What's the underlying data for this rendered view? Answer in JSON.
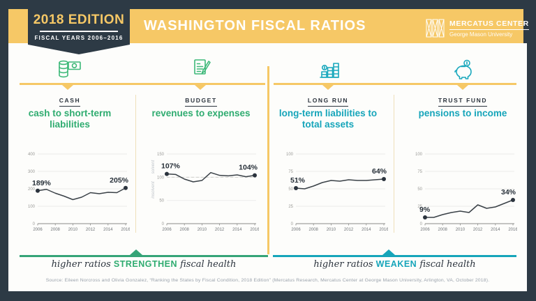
{
  "header": {
    "edition": "2018 EDITION",
    "fiscal_years": "FISCAL YEARS 2006–2016",
    "title": "WASHINGTON FISCAL RATIOS",
    "logo_name": "MERCATUS CENTER",
    "logo_subtitle": "George Mason University"
  },
  "colors": {
    "navy": "#2d3a45",
    "yellow": "#f6c866",
    "green": "#2fac70",
    "teal": "#16a5ba",
    "line": "#3a4147"
  },
  "panels": [
    {
      "category": "CASH",
      "title": "cash to short-term liabilities",
      "icon": "coins-and-bill-icon"
    },
    {
      "category": "BUDGET",
      "title": "revenues to expenses",
      "icon": "document-pencil-icon"
    },
    {
      "category": "LONG RUN",
      "title": "long-term liabilities to total assets",
      "icon": "coin-stacks-chart-icon"
    },
    {
      "category": "TRUST FUND",
      "title": "pensions to income",
      "icon": "piggy-bank-icon"
    }
  ],
  "chart_data": [
    {
      "type": "line",
      "panel": "CASH",
      "title": "cash to short-term liabilities",
      "x": [
        2006,
        2007,
        2008,
        2009,
        2010,
        2011,
        2012,
        2013,
        2014,
        2015,
        2016
      ],
      "values": [
        189,
        197,
        175,
        158,
        138,
        152,
        178,
        172,
        180,
        178,
        205
      ],
      "ylim": [
        0,
        400
      ],
      "yticks": [
        0,
        100,
        200,
        300,
        400
      ],
      "xtick_labels": [
        "2006",
        "2008",
        "2010",
        "2012",
        "2014",
        "2016"
      ],
      "start_label": "189%",
      "end_label": "205%",
      "grid": true
    },
    {
      "type": "line",
      "panel": "BUDGET",
      "title": "revenues to expenses",
      "x": [
        2006,
        2007,
        2008,
        2009,
        2010,
        2011,
        2012,
        2013,
        2014,
        2015,
        2016
      ],
      "values": [
        107,
        106,
        96,
        90,
        93,
        110,
        104,
        103,
        105,
        101,
        104
      ],
      "ylim": [
        0,
        150
      ],
      "yticks": [
        0,
        50,
        100,
        150
      ],
      "xtick_labels": [
        "2006",
        "2008",
        "2010",
        "2012",
        "2014",
        "2016"
      ],
      "start_label": "107%",
      "end_label": "104%",
      "grid": true,
      "ref_line": {
        "value": 100,
        "label_above": "solvent",
        "label_below": "insolvent"
      }
    },
    {
      "type": "line",
      "panel": "LONG RUN",
      "title": "long-term liabilities to total assets",
      "x": [
        2006,
        2007,
        2008,
        2009,
        2010,
        2011,
        2012,
        2013,
        2014,
        2015,
        2016
      ],
      "values": [
        51,
        50,
        54,
        59,
        62,
        61,
        63,
        62,
        62,
        63,
        64
      ],
      "ylim": [
        0,
        100
      ],
      "yticks": [
        0,
        25,
        50,
        75,
        100
      ],
      "xtick_labels": [
        "2006",
        "2008",
        "2010",
        "2012",
        "2014",
        "2016"
      ],
      "start_label": "51%",
      "end_label": "64%",
      "grid": true
    },
    {
      "type": "line",
      "panel": "TRUST FUND",
      "title": "pensions to income",
      "x": [
        2006,
        2007,
        2008,
        2009,
        2010,
        2011,
        2012,
        2013,
        2014,
        2015,
        2016
      ],
      "values": [
        9,
        9,
        13,
        16,
        18,
        16,
        27,
        22,
        24,
        29,
        34
      ],
      "ylim": [
        0,
        100
      ],
      "yticks": [
        0,
        25,
        50,
        75,
        100
      ],
      "xtick_labels": [
        "2006",
        "2008",
        "2010",
        "2012",
        "2014",
        "2016"
      ],
      "start_label": "9%",
      "end_label": "34%",
      "grid": true
    }
  ],
  "footers": [
    {
      "pre": "higher ratios ",
      "emphasis": "STRENGTHEN",
      "post": " fiscal health"
    },
    {
      "pre": "higher ratios ",
      "emphasis": "WEAKEN",
      "post": " fiscal health"
    }
  ],
  "source": "Source: Eileen Norcross and Olivia Gonzalez, “Ranking the States by Fiscal Condition, 2018 Edition” (Mercatus Research, Mercatus Center at George Mason University, Arlington, VA, October 2018)."
}
